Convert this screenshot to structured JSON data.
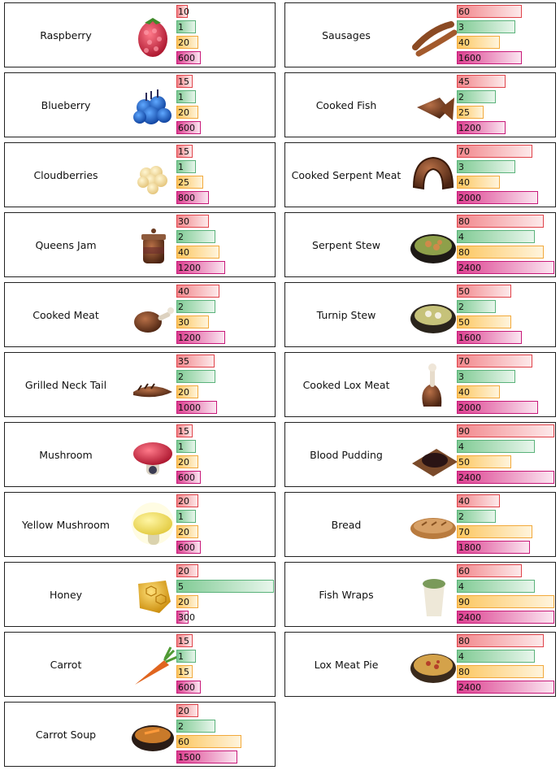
{
  "max_bar_values": [
    90,
    5,
    90,
    2400
  ],
  "foods": [
    {
      "name": "Raspberry",
      "icon": "raspberry-icon",
      "values": [
        "10",
        "1",
        "20",
        "600"
      ]
    },
    {
      "name": "Blueberry",
      "icon": "blueberry-icon",
      "values": [
        "15",
        "1",
        "20",
        "600"
      ]
    },
    {
      "name": "Cloudberries",
      "icon": "cloudberries-icon",
      "values": [
        "15",
        "1",
        "25",
        "800"
      ]
    },
    {
      "name": "Queens Jam",
      "icon": "queens-jam-icon",
      "values": [
        "30",
        "2",
        "40",
        "1200"
      ]
    },
    {
      "name": "Cooked Meat",
      "icon": "cooked-meat-icon",
      "values": [
        "40",
        "2",
        "30",
        "1200"
      ]
    },
    {
      "name": "Grilled Neck Tail",
      "icon": "grilled-neck-tail-icon",
      "values": [
        "35",
        "2",
        "20",
        "1000"
      ]
    },
    {
      "name": "Mushroom",
      "icon": "mushroom-icon",
      "values": [
        "15",
        "1",
        "20",
        "600"
      ]
    },
    {
      "name": "Yellow Mushroom",
      "icon": "yellow-mushroom-icon",
      "values": [
        "20",
        "1",
        "20",
        "600"
      ]
    },
    {
      "name": "Honey",
      "icon": "honey-icon",
      "values": [
        "20",
        "5",
        "20",
        "300"
      ]
    },
    {
      "name": "Carrot",
      "icon": "carrot-icon",
      "values": [
        "15",
        "1",
        "15",
        "600"
      ]
    },
    {
      "name": "Carrot Soup",
      "icon": "carrot-soup-icon",
      "values": [
        "20",
        "2",
        "60",
        "1500"
      ]
    },
    {
      "name": "Sausages",
      "icon": "sausages-icon",
      "values": [
        "60",
        "3",
        "40",
        "1600"
      ]
    },
    {
      "name": "Cooked Fish",
      "icon": "cooked-fish-icon",
      "values": [
        "45",
        "2",
        "25",
        "1200"
      ]
    },
    {
      "name": "Cooked Serpent Meat",
      "icon": "cooked-serpent-meat-icon",
      "values": [
        "70",
        "3",
        "40",
        "2000"
      ]
    },
    {
      "name": "Serpent Stew",
      "icon": "serpent-stew-icon",
      "values": [
        "80",
        "4",
        "80",
        "2400"
      ]
    },
    {
      "name": "Turnip Stew",
      "icon": "turnip-stew-icon",
      "values": [
        "50",
        "2",
        "50",
        "1600"
      ]
    },
    {
      "name": "Cooked Lox Meat",
      "icon": "cooked-lox-meat-icon",
      "values": [
        "70",
        "3",
        "40",
        "2000"
      ]
    },
    {
      "name": "Blood Pudding",
      "icon": "blood-pudding-icon",
      "values": [
        "90",
        "4",
        "50",
        "2400"
      ]
    },
    {
      "name": "Bread",
      "icon": "bread-icon",
      "values": [
        "40",
        "2",
        "70",
        "1800"
      ]
    },
    {
      "name": "Fish Wraps",
      "icon": "fish-wraps-icon",
      "values": [
        "60",
        "4",
        "90",
        "2400"
      ]
    },
    {
      "name": "Lox Meat Pie",
      "icon": "lox-meat-pie-icon",
      "values": [
        "80",
        "4",
        "80",
        "2400"
      ]
    }
  ]
}
